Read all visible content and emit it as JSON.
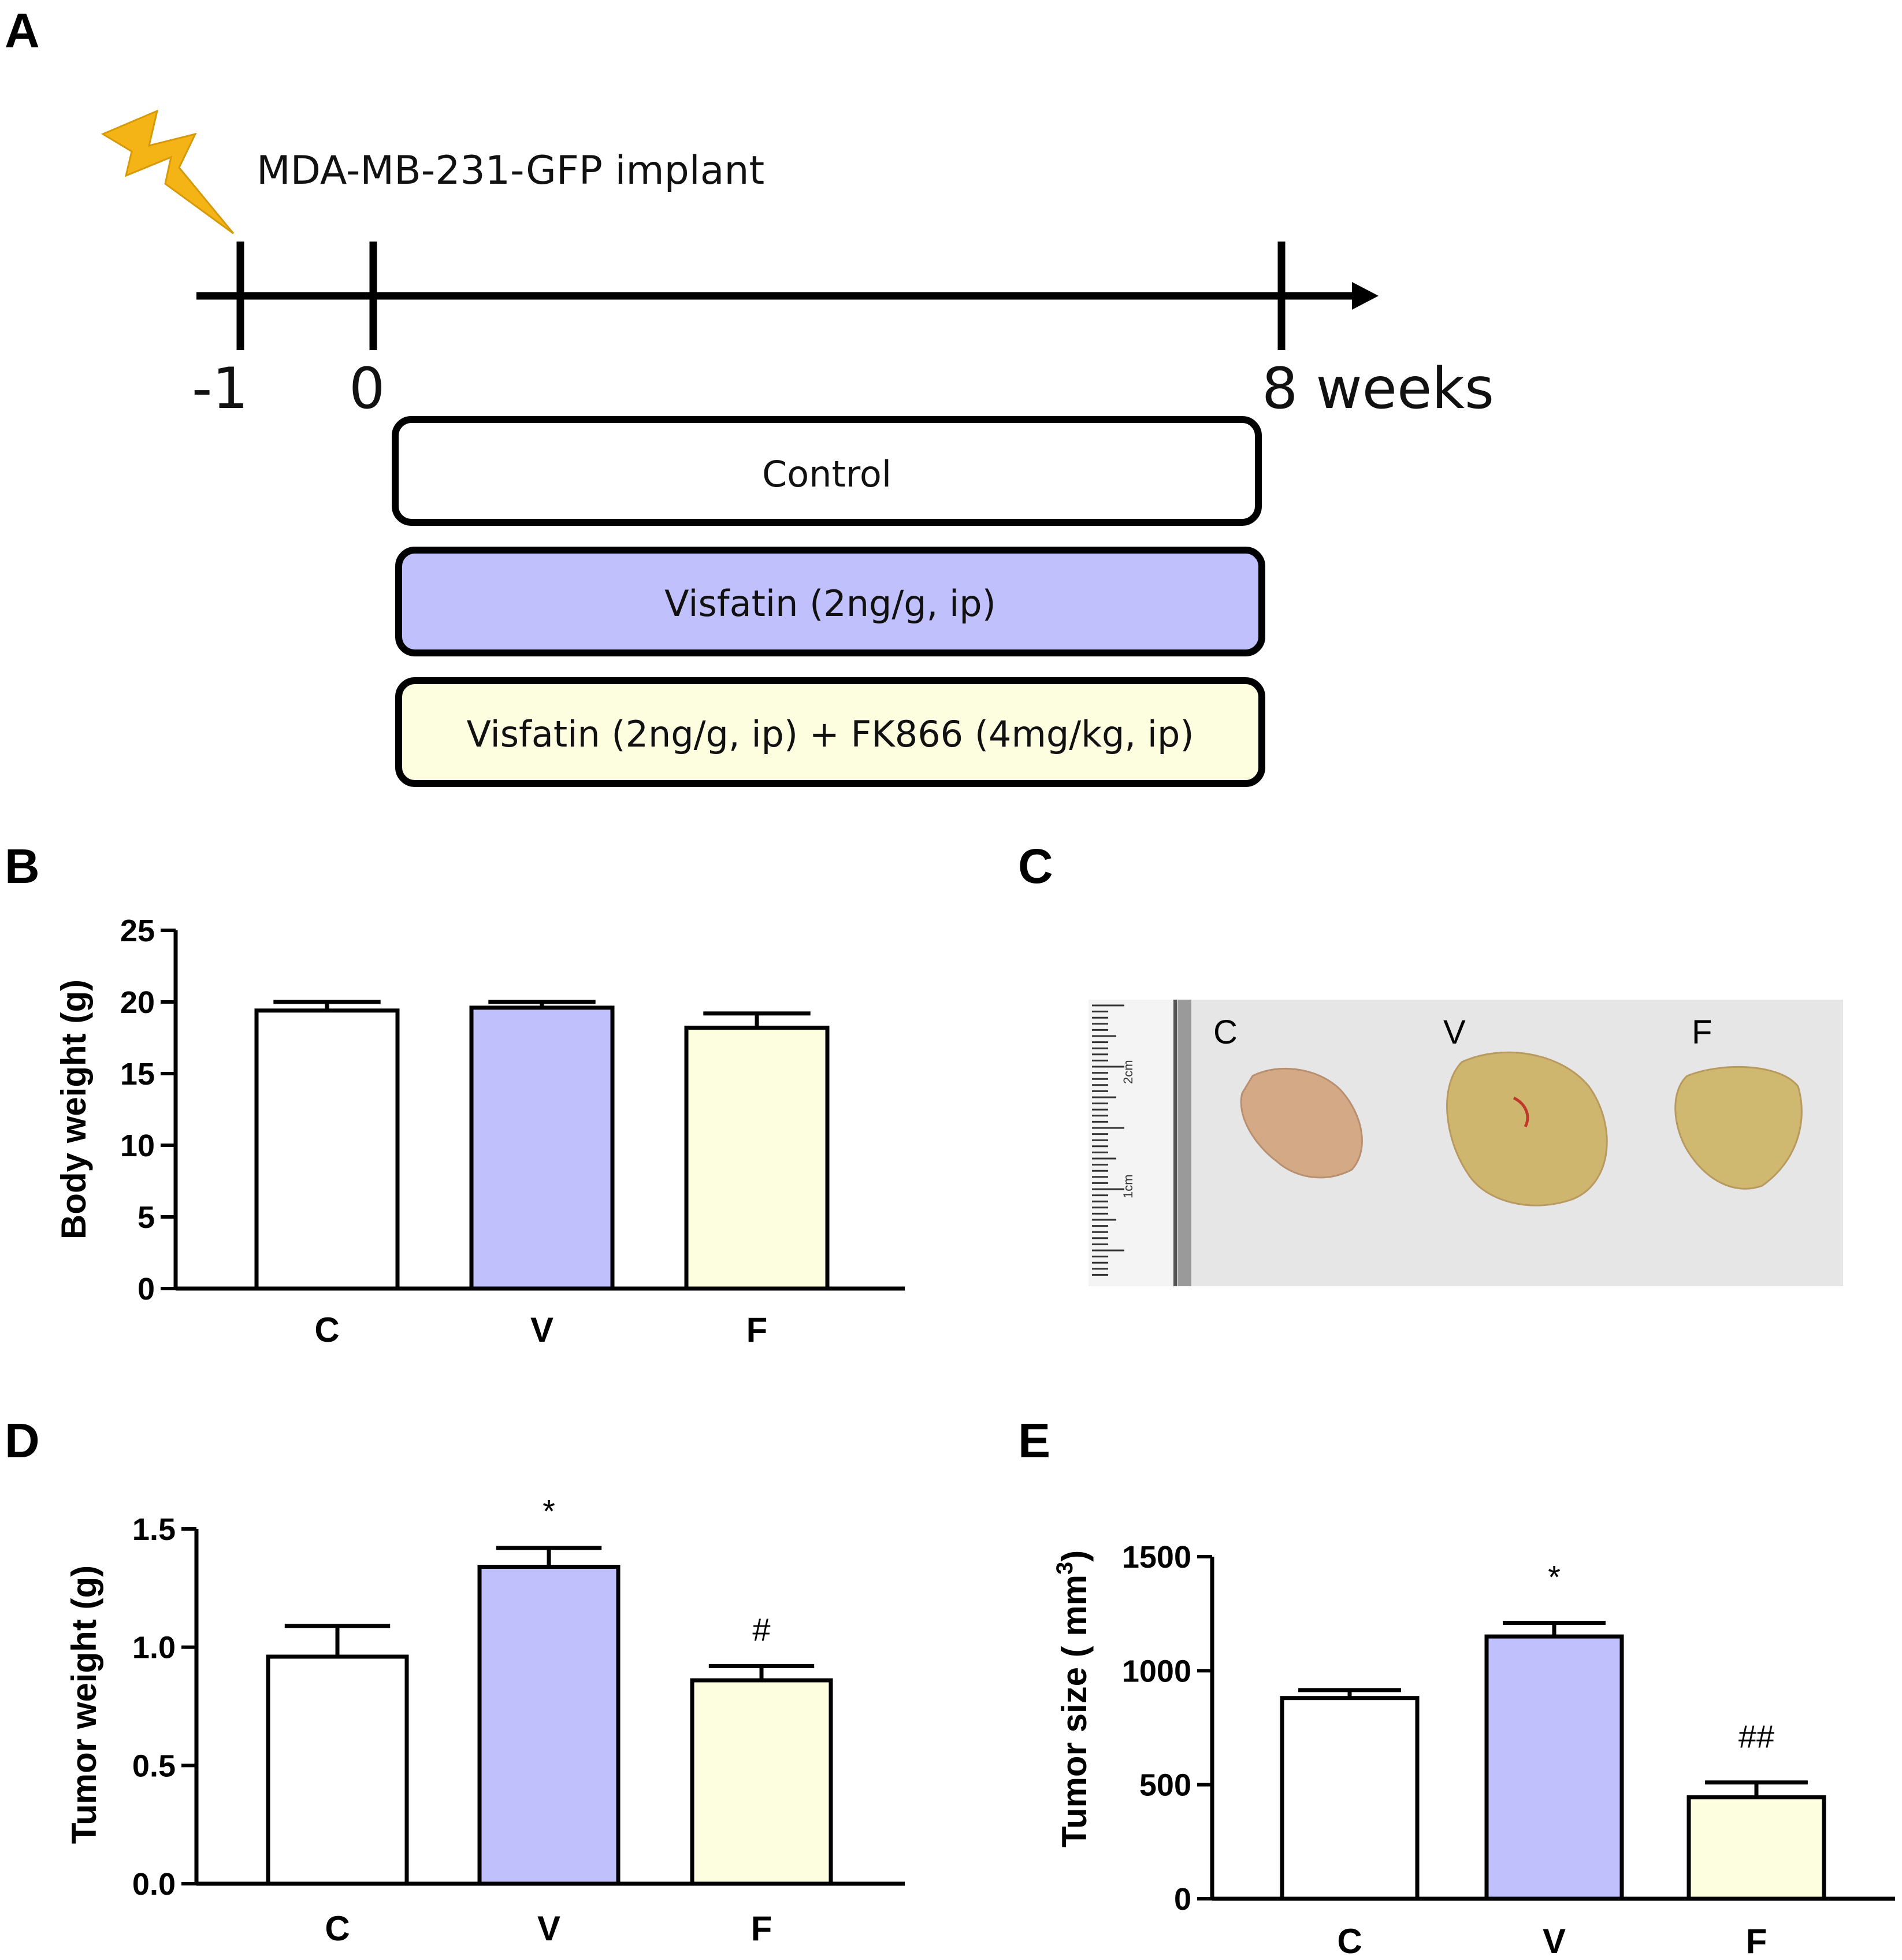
{
  "panels": {
    "a": "A",
    "b": "B",
    "c": "C",
    "d": "D",
    "e": "E"
  },
  "timeline": {
    "implant_label": "MDA-MB-231-GFP implant",
    "tick_minus1": "-1",
    "tick_0": "0",
    "tick_end": "8 weeks",
    "groups": [
      {
        "label": "Control",
        "fill": "#ffffff"
      },
      {
        "label": "Visfatin (2ng/g, ip)",
        "fill": "#c0c0fc"
      },
      {
        "label": "Visfatin (2ng/g, ip) + FK866 (4mg/kg, ip)",
        "fill": "#fdfde0"
      }
    ],
    "bolt_color": "#f5b415"
  },
  "photo": {
    "labels": [
      "C",
      "V",
      "F"
    ],
    "ruler_marks": [
      "2cm",
      "1cm"
    ]
  },
  "chart_data": [
    {
      "id": "B",
      "type": "bar",
      "categories": [
        "C",
        "V",
        "F"
      ],
      "values": [
        19.4,
        19.6,
        18.2
      ],
      "errors": [
        0.6,
        0.4,
        1.0
      ],
      "colors": [
        "#ffffff",
        "#c0c0fc",
        "#fdfde0"
      ],
      "ylabel": "Body weight (g)",
      "ylim": [
        0,
        25
      ],
      "yticks": [
        0,
        5,
        10,
        15,
        20,
        25
      ],
      "ytick_labels": [
        "0",
        "5",
        "10",
        "15",
        "20",
        "25"
      ],
      "annotations": [
        "",
        "",
        ""
      ]
    },
    {
      "id": "D",
      "type": "bar",
      "categories": [
        "C",
        "V",
        "F"
      ],
      "values": [
        0.96,
        1.34,
        0.86
      ],
      "errors": [
        0.13,
        0.08,
        0.06
      ],
      "colors": [
        "#ffffff",
        "#c0c0fc",
        "#fdfde0"
      ],
      "ylabel": "Tumor weight (g)",
      "ylim": [
        0,
        1.5
      ],
      "yticks": [
        0,
        0.5,
        1.0,
        1.5
      ],
      "ytick_labels": [
        "0.0",
        "0.5",
        "1.0",
        "1.5"
      ],
      "annotations": [
        "",
        "*",
        "#"
      ]
    },
    {
      "id": "E",
      "type": "bar",
      "categories": [
        "C",
        "V",
        "F"
      ],
      "values": [
        880,
        1150,
        445
      ],
      "errors": [
        35,
        60,
        65
      ],
      "colors": [
        "#ffffff",
        "#c0c0fc",
        "#fdfde0"
      ],
      "ylabel": "Tumor size ( mm",
      "ylabel_sup": "3",
      "ylabel_end": ")",
      "ylim": [
        0,
        1500
      ],
      "yticks": [
        0,
        500,
        1000,
        1500
      ],
      "ytick_labels": [
        "0",
        "500",
        "1000",
        "1500"
      ],
      "annotations": [
        "",
        "*",
        "##"
      ]
    }
  ]
}
